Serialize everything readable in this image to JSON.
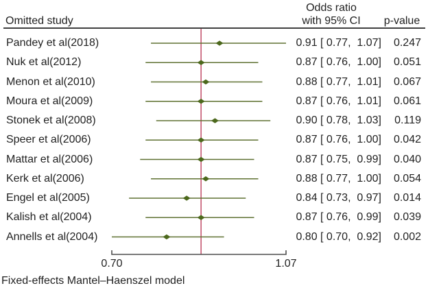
{
  "chart_data": {
    "type": "forest",
    "columns": {
      "study": "Omitted study",
      "or_ci_line1": "Odds ratio",
      "or_ci_line2": "with 95% CI",
      "p": "p-value"
    },
    "studies": [
      {
        "name": "Pandey et al(2018)",
        "or": 0.91,
        "lo": 0.77,
        "hi": 1.07,
        "ci_text": "0.91 [ 0.77,  1.07]",
        "p": "0.247"
      },
      {
        "name": "Nuk et al(2012)",
        "or": 0.87,
        "lo": 0.76,
        "hi": 1.0,
        "ci_text": "0.87 [ 0.76,  1.00]",
        "p": "0.051"
      },
      {
        "name": "Menon et al(2010)",
        "or": 0.88,
        "lo": 0.77,
        "hi": 1.01,
        "ci_text": "0.88 [ 0.77,  1.01]",
        "p": "0.067"
      },
      {
        "name": "Moura et al(2009)",
        "or": 0.87,
        "lo": 0.76,
        "hi": 1.01,
        "ci_text": "0.87 [ 0.76,  1.01]",
        "p": "0.061"
      },
      {
        "name": "Stonek et al(2008)",
        "or": 0.9,
        "lo": 0.78,
        "hi": 1.03,
        "ci_text": "0.90 [ 0.78,  1.03]",
        "p": "0.119"
      },
      {
        "name": "Speer et al(2006)",
        "or": 0.87,
        "lo": 0.76,
        "hi": 1.0,
        "ci_text": "0.87 [ 0.76,  1.00]",
        "p": "0.042"
      },
      {
        "name": "Mattar et al(2006)",
        "or": 0.87,
        "lo": 0.75,
        "hi": 0.99,
        "ci_text": "0.87 [ 0.75,  0.99]",
        "p": "0.040"
      },
      {
        "name": "Kerk et al(2006)",
        "or": 0.88,
        "lo": 0.77,
        "hi": 1.0,
        "ci_text": "0.88 [ 0.77,  1.00]",
        "p": "0.054"
      },
      {
        "name": "Engel et al(2005)",
        "or": 0.84,
        "lo": 0.73,
        "hi": 0.97,
        "ci_text": "0.84 [ 0.73,  0.97]",
        "p": "0.014"
      },
      {
        "name": "Kalish et al(2004)",
        "or": 0.87,
        "lo": 0.76,
        "hi": 0.99,
        "ci_text": "0.87 [ 0.76,  0.99]",
        "p": "0.039"
      },
      {
        "name": "Annells et al(2004)",
        "or": 0.8,
        "lo": 0.7,
        "hi": 0.92,
        "ci_text": "0.80 [ 0.70,  0.92]",
        "p": "0.002"
      }
    ],
    "axis": {
      "min": 0.7,
      "max": 1.07,
      "scale": "log",
      "ticks": [
        "0.70",
        "1.07"
      ]
    },
    "ref_line_value": 0.87,
    "footer": "Fixed-effects Mantel–Haenszel model",
    "colors": {
      "marker": "#4c681c",
      "ci_line": "#5e7030",
      "ref_line": "#c4566f",
      "axis": "#4d4d4d",
      "header_rule": "#404040",
      "text": "#1f1f1f"
    },
    "legend": "none",
    "grid": false
  }
}
